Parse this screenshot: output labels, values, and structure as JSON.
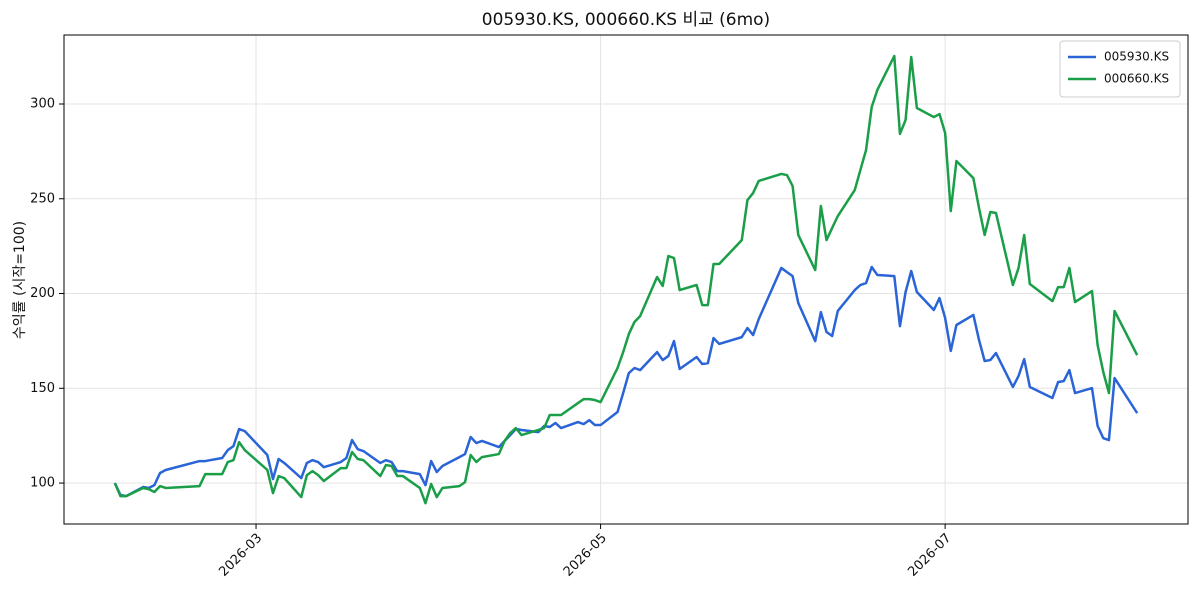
{
  "chart_data": {
    "type": "line",
    "title": "005930.KS, 000660.KS 비교 (6mo)",
    "ylabel": "수익률 (시작=100)",
    "x": [
      "2026-02-04",
      "2026-02-05",
      "2026-02-06",
      "2026-02-09",
      "2026-02-10",
      "2026-02-11",
      "2026-02-12",
      "2026-02-13",
      "2026-02-19",
      "2026-02-20",
      "2026-02-23",
      "2026-02-24",
      "2026-02-25",
      "2026-02-26",
      "2026-02-27",
      "2026-03-03",
      "2026-03-04",
      "2026-03-05",
      "2026-03-06",
      "2026-03-09",
      "2026-03-10",
      "2026-03-11",
      "2026-03-12",
      "2026-03-13",
      "2026-03-16",
      "2026-03-17",
      "2026-03-18",
      "2026-03-19",
      "2026-03-20",
      "2026-03-23",
      "2026-03-24",
      "2026-03-25",
      "2026-03-26",
      "2026-03-27",
      "2026-03-30",
      "2026-03-31",
      "2026-04-01",
      "2026-04-02",
      "2026-04-03",
      "2026-04-06",
      "2026-04-07",
      "2026-04-08",
      "2026-04-09",
      "2026-04-10",
      "2026-04-13",
      "2026-04-14",
      "2026-04-15",
      "2026-04-16",
      "2026-04-17",
      "2026-04-20",
      "2026-04-21",
      "2026-04-22",
      "2026-04-23",
      "2026-04-24",
      "2026-04-27",
      "2026-04-28",
      "2026-04-29",
      "2026-04-30",
      "2026-05-01",
      "2026-05-04",
      "2026-05-05",
      "2026-05-06",
      "2026-05-07",
      "2026-05-08",
      "2026-05-11",
      "2026-05-12",
      "2026-05-13",
      "2026-05-14",
      "2026-05-15",
      "2026-05-18",
      "2026-05-19",
      "2026-05-20",
      "2026-05-21",
      "2026-05-22",
      "2026-05-26",
      "2026-05-27",
      "2026-05-28",
      "2026-05-29",
      "2026-06-02",
      "2026-06-03",
      "2026-06-04",
      "2026-06-05",
      "2026-06-08",
      "2026-06-09",
      "2026-06-10",
      "2026-06-11",
      "2026-06-12",
      "2026-06-15",
      "2026-06-16",
      "2026-06-17",
      "2026-06-18",
      "2026-06-19",
      "2026-06-22",
      "2026-06-23",
      "2026-06-24",
      "2026-06-25",
      "2026-06-26",
      "2026-06-29",
      "2026-06-30",
      "2026-07-01",
      "2026-07-02",
      "2026-07-03",
      "2026-07-06",
      "2026-07-07",
      "2026-07-08",
      "2026-07-09",
      "2026-07-10",
      "2026-07-13",
      "2026-07-14",
      "2026-07-15",
      "2026-07-16",
      "2026-07-20",
      "2026-07-21",
      "2026-07-22",
      "2026-07-23",
      "2026-07-24",
      "2026-07-27",
      "2026-07-28",
      "2026-07-29",
      "2026-07-30",
      "2026-07-31",
      "2026-08-04"
    ],
    "series": [
      {
        "name": "005930.KS",
        "color": "#2a64d6",
        "values": [
          100,
          93.7,
          93.1,
          97.9,
          97.4,
          98.9,
          105.3,
          106.9,
          111.6,
          111.6,
          113.2,
          117.4,
          119.5,
          128.5,
          127.4,
          114.8,
          102.1,
          112.7,
          110.6,
          102.6,
          110.6,
          112.1,
          111.1,
          108.4,
          111.1,
          113.2,
          122.7,
          117.9,
          116.9,
          110.6,
          112.1,
          111.1,
          106.3,
          106.3,
          104.7,
          98.9,
          111.6,
          105.8,
          109.0,
          113.7,
          115.3,
          124.3,
          121.1,
          122.2,
          119.0,
          122.2,
          125.3,
          128.5,
          128.0,
          126.9,
          130.1,
          129.6,
          131.7,
          129.0,
          132.2,
          131.1,
          133.2,
          130.6,
          130.6,
          137.5,
          147.5,
          158.0,
          160.7,
          159.6,
          169.1,
          164.9,
          167.0,
          174.9,
          160.2,
          166.5,
          162.8,
          163.3,
          176.5,
          173.4,
          177.0,
          181.8,
          178.1,
          186.5,
          213.5,
          211.3,
          209.2,
          195.0,
          174.9,
          190.2,
          179.7,
          177.6,
          190.8,
          201.8,
          204.5,
          205.5,
          214.0,
          209.8,
          209.2,
          182.8,
          200.8,
          211.9,
          200.8,
          191.3,
          197.6,
          187.1,
          169.7,
          183.4,
          188.7,
          175.5,
          164.4,
          164.9,
          168.6,
          150.7,
          156.5,
          165.4,
          150.7,
          144.9,
          153.3,
          153.8,
          159.6,
          147.5,
          150.1,
          130.1,
          123.7,
          122.7,
          155.4,
          136.9
        ]
      },
      {
        "name": "000660.KS",
        "color": "#1a9e48",
        "values": [
          100,
          93.1,
          93.1,
          97.4,
          96.8,
          95.3,
          98.4,
          97.4,
          98.4,
          104.7,
          104.7,
          111.1,
          112.1,
          121.6,
          117.4,
          106.9,
          94.7,
          103.7,
          102.6,
          92.6,
          104.2,
          106.3,
          104.2,
          101.1,
          107.9,
          107.9,
          116.4,
          112.7,
          112.1,
          103.7,
          109.5,
          109.0,
          103.7,
          103.7,
          97.4,
          89.4,
          99.5,
          92.6,
          97.4,
          98.4,
          100.5,
          114.8,
          111.1,
          113.7,
          115.3,
          122.2,
          126.4,
          129.0,
          125.3,
          128.0,
          129.0,
          135.9,
          135.9,
          135.9,
          142.2,
          144.3,
          144.3,
          143.8,
          142.7,
          160.7,
          169.1,
          178.6,
          185.0,
          188.1,
          208.7,
          204.0,
          219.8,
          218.7,
          201.8,
          204.5,
          193.9,
          193.9,
          215.6,
          215.6,
          228.2,
          249.3,
          253.0,
          259.4,
          263.1,
          262.5,
          256.7,
          230.9,
          212.4,
          246.2,
          228.2,
          234.6,
          240.9,
          254.6,
          265.2,
          275.7,
          298.4,
          307.4,
          325.3,
          284.2,
          291.6,
          324.8,
          297.9,
          293.1,
          294.7,
          284.7,
          243.5,
          269.9,
          260.9,
          245.1,
          230.9,
          243.0,
          242.5,
          204.5,
          213.5,
          230.9,
          205.0,
          196.0,
          203.4,
          203.4,
          213.5,
          195.5,
          201.3,
          172.8,
          158.6,
          147.5,
          190.8,
          167.5
        ]
      }
    ],
    "xlim": [
      "2026-01-26",
      "2026-08-13"
    ],
    "xticks": [
      {
        "value": "2026-03-01",
        "label": "2026-03"
      },
      {
        "value": "2026-05-01",
        "label": "2026-05"
      },
      {
        "value": "2026-07-01",
        "label": "2026-07"
      }
    ],
    "ylim": [
      78.4,
      336.4
    ],
    "yticks": [
      100,
      150,
      200,
      250,
      300
    ],
    "grid": true,
    "legend": "upper right"
  }
}
